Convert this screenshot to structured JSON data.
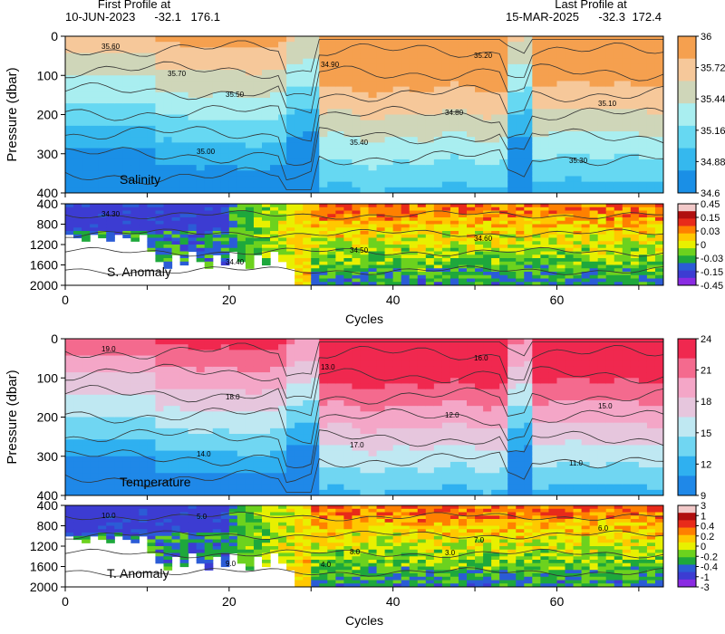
{
  "header": {
    "first_label": "First Profile at",
    "first_date": "10-JUN-2023",
    "first_lat": "-32.1",
    "first_lon": "176.1",
    "last_label": "Last Profile at",
    "last_date": "15-MAR-2025",
    "last_lat": "-32.3",
    "last_lon": "172.4"
  },
  "chart_data": [
    {
      "type": "heatmap",
      "title": "Salinity",
      "ylabel": "Pressure (dbar)",
      "xlim": [
        0,
        73
      ],
      "ylim": [
        400,
        0
      ],
      "y_ticks": [
        0,
        100,
        200,
        300,
        400
      ],
      "colorbar": {
        "ticks": [
          "36",
          "35.72",
          "35.44",
          "35.16",
          "34.88",
          "34.6"
        ],
        "colors": [
          "#f5a04f",
          "#f6c89a",
          "#cfd6b9",
          "#a9eef0",
          "#66d8f2",
          "#35b8ee",
          "#1a8fe6"
        ]
      },
      "contour_labels": [
        "35.60",
        "35.50",
        "35.40",
        "35.20",
        "35.10",
        "35.00",
        "34.90",
        "34.80",
        "35.30",
        "35.70"
      ]
    },
    {
      "type": "heatmap",
      "title": "S. Anomaly",
      "xlim": [
        0,
        73
      ],
      "ylim": [
        2000,
        400
      ],
      "y_ticks": [
        400,
        800,
        1200,
        1600,
        2000
      ],
      "colorbar": {
        "ticks": [
          "0.45",
          "0.15",
          "0.03",
          "0",
          "-0.03",
          "-0.15",
          "-0.45"
        ],
        "colors": [
          "#f2c9c9",
          "#b00f0f",
          "#e82a1a",
          "#ff8000",
          "#ffc800",
          "#e8f000",
          "#6cd21e",
          "#1ea83c",
          "#2b5cd6",
          "#3c3cd2",
          "#8a2be2"
        ]
      },
      "contour_labels": [
        "34.30",
        "34.40",
        "34.50",
        "34.60"
      ],
      "xlabel": "Cycles",
      "x_ticks": [
        0,
        20,
        40,
        60
      ]
    },
    {
      "type": "heatmap",
      "title": "Temperature",
      "ylabel": "Pressure (dbar)",
      "xlim": [
        0,
        73
      ],
      "ylim": [
        400,
        0
      ],
      "y_ticks": [
        0,
        100,
        200,
        300,
        400
      ],
      "colorbar": {
        "ticks": [
          "24",
          "21",
          "18",
          "15",
          "12",
          "9"
        ],
        "colors": [
          "#f0284f",
          "#f46a8e",
          "#f4a6c7",
          "#e6c6dd",
          "#bfe8f2",
          "#70d6f2",
          "#2fb0f0",
          "#1f88e8"
        ]
      },
      "contour_labels": [
        "19.0",
        "18.0",
        "17.0",
        "16.0",
        "15.0",
        "14.0",
        "13.0",
        "12.0",
        "11.0"
      ]
    },
    {
      "type": "heatmap",
      "title": "T. Anomaly",
      "xlim": [
        0,
        73
      ],
      "ylim": [
        2000,
        400
      ],
      "y_ticks": [
        400,
        800,
        1200,
        1600,
        2000
      ],
      "colorbar": {
        "ticks": [
          "3",
          "1",
          "0.4",
          "0.2",
          "0",
          "-0.2",
          "-0.4",
          "-1",
          "-3"
        ],
        "colors": [
          "#f2c9c9",
          "#b00f0f",
          "#e82a1a",
          "#ff8000",
          "#ffc800",
          "#e8f000",
          "#6cd21e",
          "#1ea83c",
          "#2b5cd6",
          "#3c3cd2",
          "#8a2be2"
        ]
      },
      "contour_labels": [
        "10.0",
        "9.0",
        "8.0",
        "7.0",
        "6.0",
        "5.0",
        "4.0",
        "3.0"
      ],
      "xlabel": "Cycles",
      "x_ticks": [
        0,
        20,
        40,
        60
      ]
    }
  ]
}
